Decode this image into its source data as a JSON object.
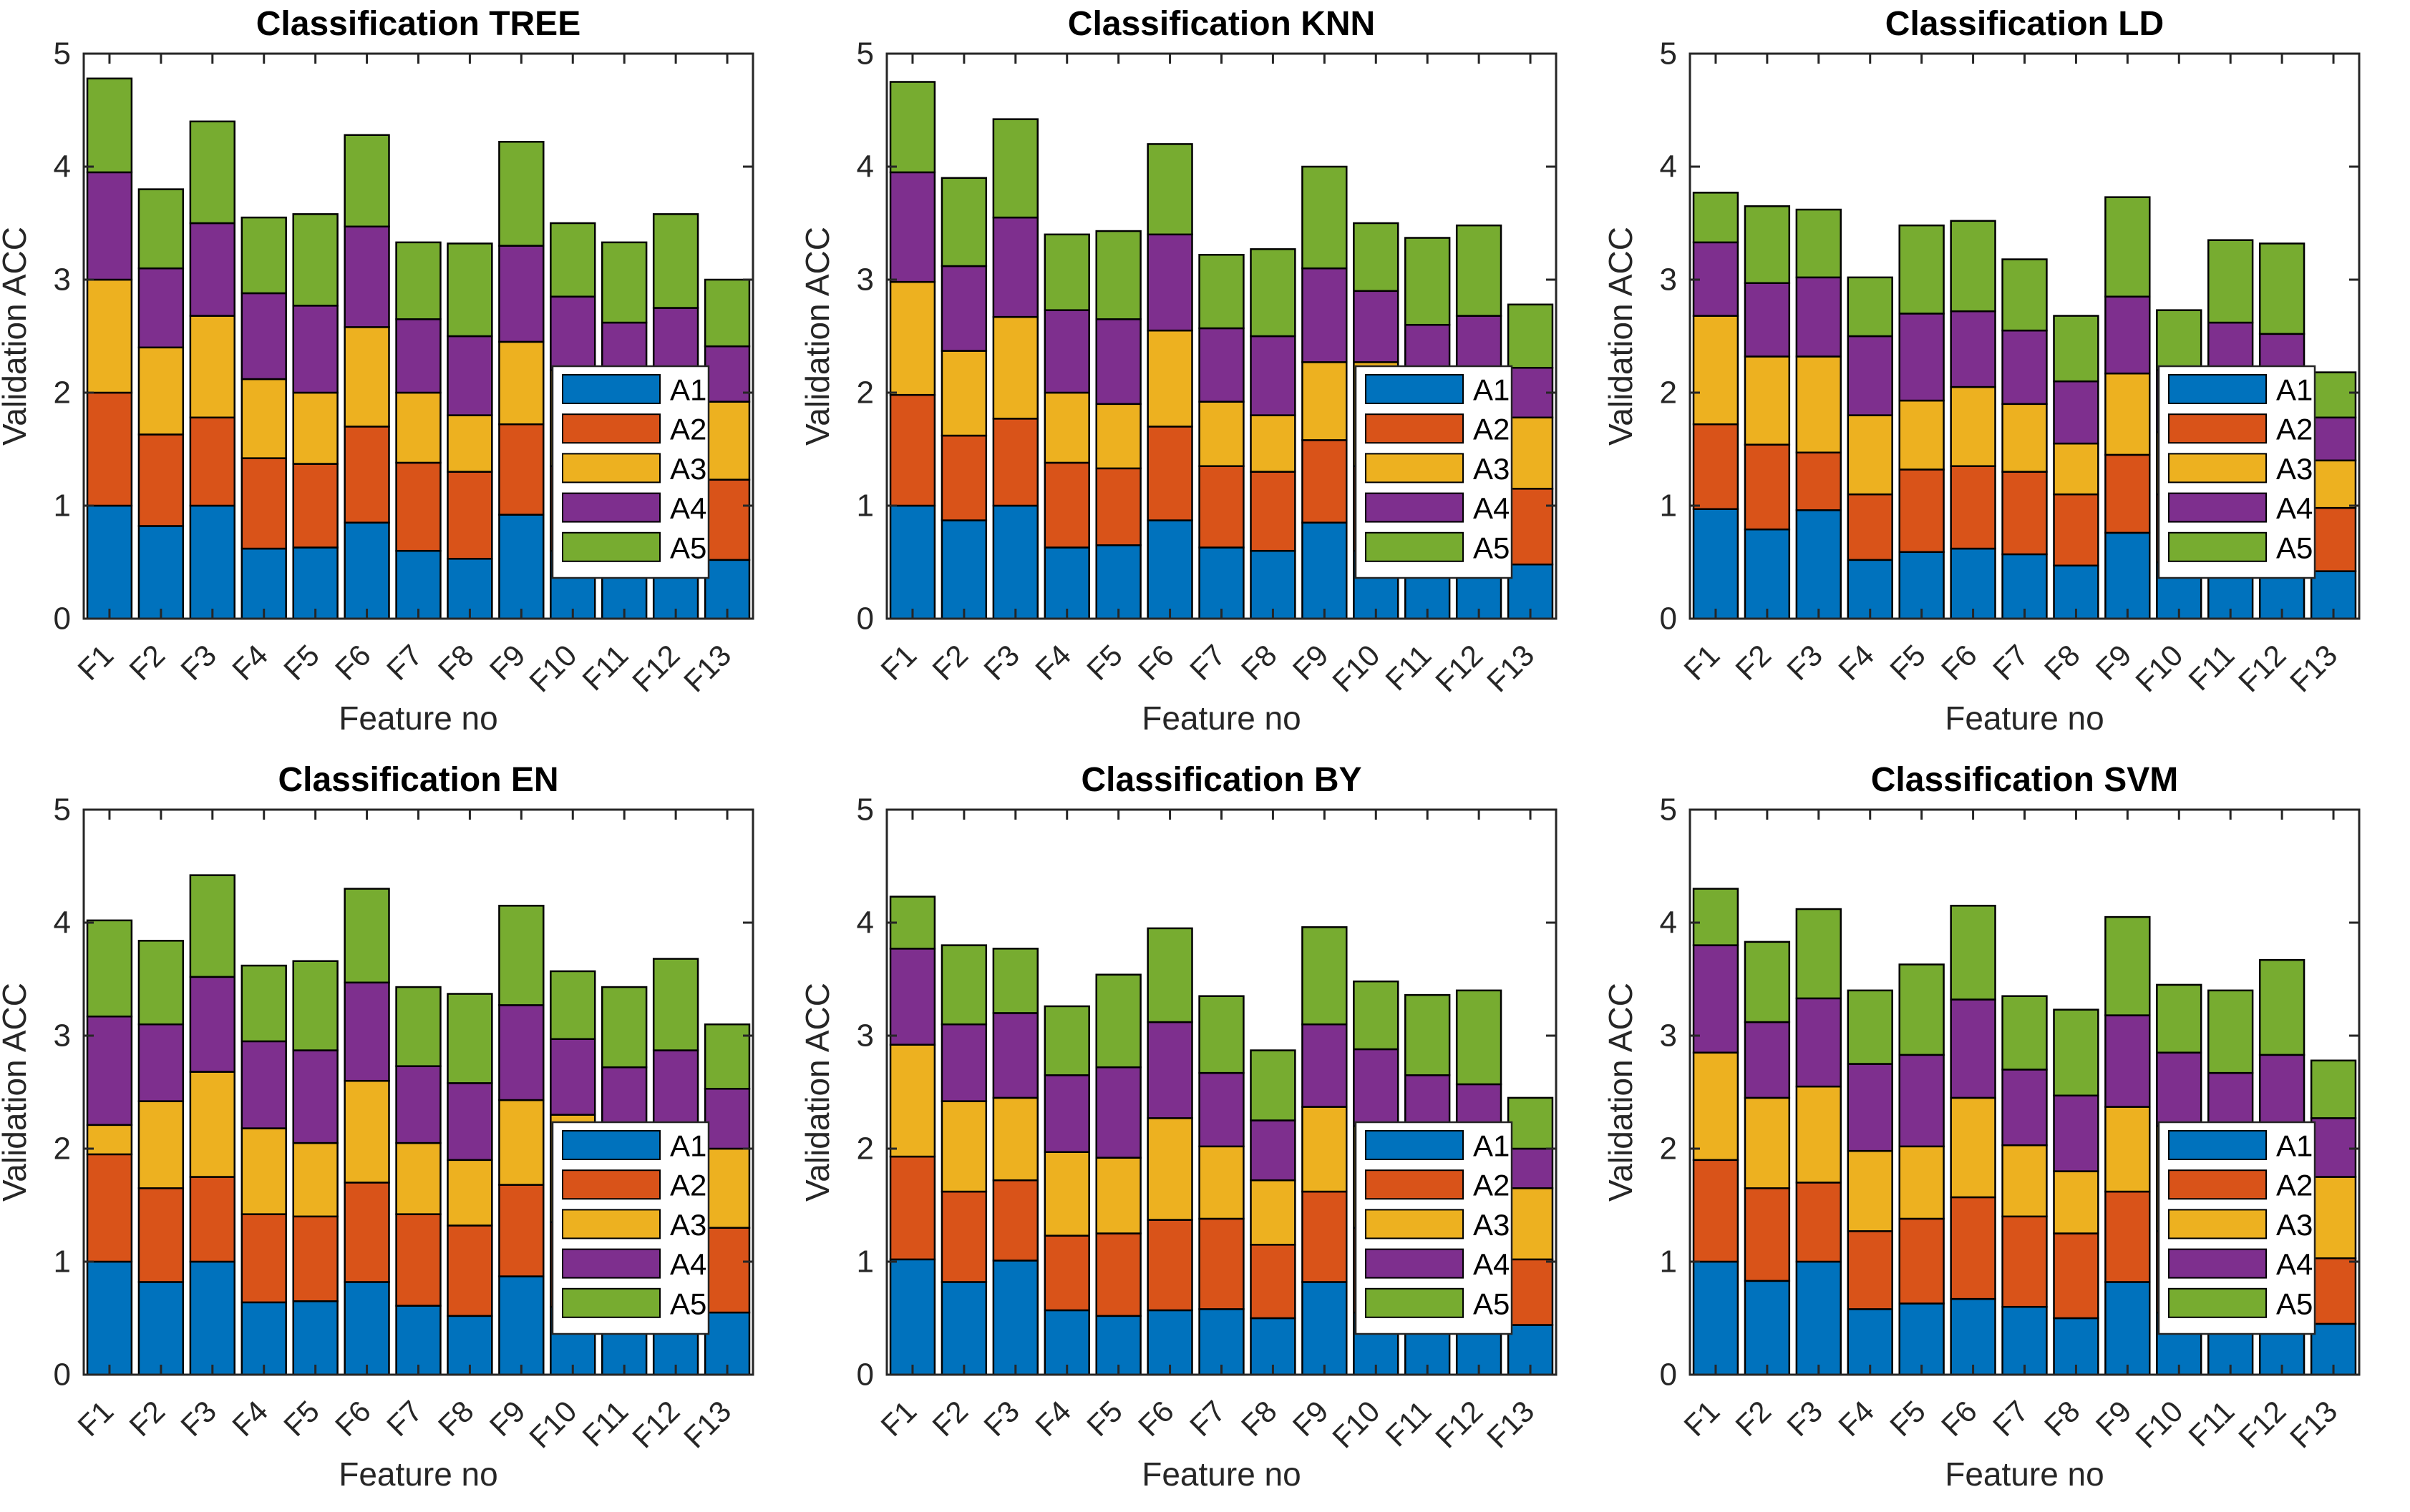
{
  "figure": {
    "background": "#ffffff",
    "rows": 2,
    "cols": 3,
    "axis_color": "#262626",
    "title_color": "#000000",
    "bar_edge_color": "#000000"
  },
  "palette": {
    "A1": "#0072BD",
    "A2": "#D95319",
    "A3": "#EDB120",
    "A4": "#7E2F8E",
    "A5": "#77AC30"
  },
  "chart_data": [
    {
      "type": "bar",
      "stacked": true,
      "title": "Classification TREE",
      "xlabel": "Feature no",
      "ylabel": "Validation ACC",
      "categories": [
        "F1",
        "F2",
        "F3",
        "F4",
        "F5",
        "F6",
        "F7",
        "F8",
        "F9",
        "F10",
        "F11",
        "F12",
        "F13"
      ],
      "ylim": [
        0,
        5
      ],
      "yticks": [
        0,
        1,
        2,
        3,
        4,
        5
      ],
      "grid": false,
      "legend_position": "inside-lower-right",
      "series": [
        {
          "name": "A1",
          "color": "#0072BD",
          "values": [
            1.0,
            0.82,
            1.0,
            0.62,
            0.63,
            0.85,
            0.6,
            0.53,
            0.92,
            0.6,
            0.55,
            0.6,
            0.52
          ]
        },
        {
          "name": "A2",
          "color": "#D95319",
          "values": [
            1.0,
            0.81,
            0.78,
            0.8,
            0.74,
            0.85,
            0.78,
            0.77,
            0.8,
            0.75,
            0.75,
            0.75,
            0.71
          ]
        },
        {
          "name": "A3",
          "color": "#EDB120",
          "values": [
            1.0,
            0.77,
            0.9,
            0.7,
            0.63,
            0.88,
            0.62,
            0.5,
            0.73,
            0.85,
            0.75,
            0.75,
            0.69
          ]
        },
        {
          "name": "A4",
          "color": "#7E2F8E",
          "values": [
            0.95,
            0.7,
            0.82,
            0.76,
            0.77,
            0.89,
            0.65,
            0.7,
            0.85,
            0.65,
            0.57,
            0.65,
            0.49
          ]
        },
        {
          "name": "A5",
          "color": "#77AC30",
          "values": [
            0.83,
            0.7,
            0.9,
            0.67,
            0.81,
            0.81,
            0.68,
            0.82,
            0.92,
            0.65,
            0.71,
            0.83,
            0.59
          ]
        }
      ]
    },
    {
      "type": "bar",
      "stacked": true,
      "title": "Classification KNN",
      "xlabel": "Feature no",
      "ylabel": "Validation ACC",
      "categories": [
        "F1",
        "F2",
        "F3",
        "F4",
        "F5",
        "F6",
        "F7",
        "F8",
        "F9",
        "F10",
        "F11",
        "F12",
        "F13"
      ],
      "ylim": [
        0,
        5
      ],
      "yticks": [
        0,
        1,
        2,
        3,
        4,
        5
      ],
      "grid": false,
      "legend_position": "inside-lower-right",
      "series": [
        {
          "name": "A1",
          "color": "#0072BD",
          "values": [
            1.0,
            0.87,
            1.0,
            0.63,
            0.65,
            0.87,
            0.63,
            0.6,
            0.85,
            0.6,
            0.55,
            0.6,
            0.48
          ]
        },
        {
          "name": "A2",
          "color": "#D95319",
          "values": [
            0.98,
            0.75,
            0.77,
            0.75,
            0.68,
            0.83,
            0.72,
            0.7,
            0.73,
            0.75,
            0.75,
            0.72,
            0.67
          ]
        },
        {
          "name": "A3",
          "color": "#EDB120",
          "values": [
            1.0,
            0.75,
            0.9,
            0.62,
            0.57,
            0.85,
            0.57,
            0.5,
            0.69,
            0.92,
            0.75,
            0.73,
            0.63
          ]
        },
        {
          "name": "A4",
          "color": "#7E2F8E",
          "values": [
            0.97,
            0.75,
            0.88,
            0.73,
            0.75,
            0.85,
            0.65,
            0.7,
            0.83,
            0.63,
            0.55,
            0.63,
            0.44
          ]
        },
        {
          "name": "A5",
          "color": "#77AC30",
          "values": [
            0.8,
            0.78,
            0.87,
            0.67,
            0.78,
            0.8,
            0.65,
            0.77,
            0.9,
            0.6,
            0.77,
            0.8,
            0.56
          ]
        }
      ]
    },
    {
      "type": "bar",
      "stacked": true,
      "title": "Classification LD",
      "xlabel": "Feature no",
      "ylabel": "Validation ACC",
      "categories": [
        "F1",
        "F2",
        "F3",
        "F4",
        "F5",
        "F6",
        "F7",
        "F8",
        "F9",
        "F10",
        "F11",
        "F12",
        "F13"
      ],
      "ylim": [
        0,
        5
      ],
      "yticks": [
        0,
        1,
        2,
        3,
        4,
        5
      ],
      "grid": false,
      "legend_position": "inside-lower-right",
      "series": [
        {
          "name": "A1",
          "color": "#0072BD",
          "values": [
            0.97,
            0.79,
            0.96,
            0.52,
            0.59,
            0.62,
            0.57,
            0.47,
            0.76,
            0.5,
            0.55,
            0.55,
            0.42
          ]
        },
        {
          "name": "A2",
          "color": "#D95319",
          "values": [
            0.75,
            0.75,
            0.51,
            0.58,
            0.73,
            0.73,
            0.73,
            0.63,
            0.69,
            0.6,
            0.7,
            0.68,
            0.56
          ]
        },
        {
          "name": "A3",
          "color": "#EDB120",
          "values": [
            0.96,
            0.78,
            0.85,
            0.7,
            0.61,
            0.7,
            0.6,
            0.45,
            0.72,
            0.55,
            0.75,
            0.72,
            0.42
          ]
        },
        {
          "name": "A4",
          "color": "#7E2F8E",
          "values": [
            0.65,
            0.65,
            0.7,
            0.7,
            0.77,
            0.67,
            0.65,
            0.55,
            0.68,
            0.55,
            0.62,
            0.57,
            0.38
          ]
        },
        {
          "name": "A5",
          "color": "#77AC30",
          "values": [
            0.44,
            0.68,
            0.6,
            0.52,
            0.78,
            0.8,
            0.63,
            0.58,
            0.88,
            0.53,
            0.73,
            0.8,
            0.4
          ]
        }
      ]
    },
    {
      "type": "bar",
      "stacked": true,
      "title": "Classification EN",
      "xlabel": "Feature no",
      "ylabel": "Validation ACC",
      "categories": [
        "F1",
        "F2",
        "F3",
        "F4",
        "F5",
        "F6",
        "F7",
        "F8",
        "F9",
        "F10",
        "F11",
        "F12",
        "F13"
      ],
      "ylim": [
        0,
        5
      ],
      "yticks": [
        0,
        1,
        2,
        3,
        4,
        5
      ],
      "grid": false,
      "legend_position": "inside-lower-right",
      "series": [
        {
          "name": "A1",
          "color": "#0072BD",
          "values": [
            1.0,
            0.82,
            1.0,
            0.64,
            0.65,
            0.82,
            0.61,
            0.52,
            0.87,
            0.6,
            0.55,
            0.6,
            0.55
          ]
        },
        {
          "name": "A2",
          "color": "#D95319",
          "values": [
            0.95,
            0.83,
            0.75,
            0.78,
            0.75,
            0.88,
            0.81,
            0.8,
            0.81,
            0.75,
            0.72,
            0.73,
            0.75
          ]
        },
        {
          "name": "A3",
          "color": "#EDB120",
          "values": [
            0.26,
            0.77,
            0.93,
            0.76,
            0.65,
            0.9,
            0.63,
            0.58,
            0.75,
            0.95,
            0.75,
            0.75,
            0.7
          ]
        },
        {
          "name": "A4",
          "color": "#7E2F8E",
          "values": [
            0.96,
            0.68,
            0.84,
            0.77,
            0.82,
            0.87,
            0.68,
            0.68,
            0.84,
            0.67,
            0.7,
            0.79,
            0.53
          ]
        },
        {
          "name": "A5",
          "color": "#77AC30",
          "values": [
            0.85,
            0.74,
            0.9,
            0.67,
            0.79,
            0.83,
            0.7,
            0.79,
            0.88,
            0.6,
            0.71,
            0.81,
            0.57
          ]
        }
      ]
    },
    {
      "type": "bar",
      "stacked": true,
      "title": "Classification BY",
      "xlabel": "Feature no",
      "ylabel": "Validation ACC",
      "categories": [
        "F1",
        "F2",
        "F3",
        "F4",
        "F5",
        "F6",
        "F7",
        "F8",
        "F9",
        "F10",
        "F11",
        "F12",
        "F13"
      ],
      "ylim": [
        0,
        5
      ],
      "yticks": [
        0,
        1,
        2,
        3,
        4,
        5
      ],
      "grid": false,
      "legend_position": "inside-lower-right",
      "series": [
        {
          "name": "A1",
          "color": "#0072BD",
          "values": [
            1.02,
            0.82,
            1.01,
            0.57,
            0.52,
            0.57,
            0.58,
            0.5,
            0.82,
            0.55,
            0.55,
            0.55,
            0.44
          ]
        },
        {
          "name": "A2",
          "color": "#D95319",
          "values": [
            0.91,
            0.8,
            0.71,
            0.66,
            0.73,
            0.8,
            0.8,
            0.65,
            0.8,
            0.75,
            0.7,
            0.7,
            0.58
          ]
        },
        {
          "name": "A3",
          "color": "#EDB120",
          "values": [
            0.99,
            0.8,
            0.73,
            0.74,
            0.67,
            0.9,
            0.64,
            0.57,
            0.75,
            0.9,
            0.78,
            0.75,
            0.63
          ]
        },
        {
          "name": "A4",
          "color": "#7E2F8E",
          "values": [
            0.85,
            0.68,
            0.75,
            0.68,
            0.8,
            0.85,
            0.65,
            0.53,
            0.73,
            0.68,
            0.62,
            0.57,
            0.35
          ]
        },
        {
          "name": "A5",
          "color": "#77AC30",
          "values": [
            0.46,
            0.7,
            0.57,
            0.61,
            0.82,
            0.83,
            0.68,
            0.62,
            0.86,
            0.6,
            0.71,
            0.83,
            0.45
          ]
        }
      ]
    },
    {
      "type": "bar",
      "stacked": true,
      "title": "Classification SVM",
      "xlabel": "Feature no",
      "ylabel": "Validation ACC",
      "categories": [
        "F1",
        "F2",
        "F3",
        "F4",
        "F5",
        "F6",
        "F7",
        "F8",
        "F9",
        "F10",
        "F11",
        "F12",
        "F13"
      ],
      "ylim": [
        0,
        5
      ],
      "yticks": [
        0,
        1,
        2,
        3,
        4,
        5
      ],
      "grid": false,
      "legend_position": "inside-lower-right",
      "series": [
        {
          "name": "A1",
          "color": "#0072BD",
          "values": [
            1.0,
            0.83,
            1.0,
            0.58,
            0.63,
            0.67,
            0.6,
            0.5,
            0.82,
            0.55,
            0.55,
            0.58,
            0.45
          ]
        },
        {
          "name": "A2",
          "color": "#D95319",
          "values": [
            0.9,
            0.82,
            0.7,
            0.69,
            0.75,
            0.9,
            0.8,
            0.75,
            0.8,
            0.72,
            0.7,
            0.72,
            0.58
          ]
        },
        {
          "name": "A3",
          "color": "#EDB120",
          "values": [
            0.95,
            0.8,
            0.85,
            0.71,
            0.64,
            0.88,
            0.63,
            0.55,
            0.75,
            0.93,
            0.75,
            0.73,
            0.72
          ]
        },
        {
          "name": "A4",
          "color": "#7E2F8E",
          "values": [
            0.95,
            0.67,
            0.78,
            0.77,
            0.81,
            0.87,
            0.67,
            0.67,
            0.81,
            0.65,
            0.67,
            0.8,
            0.52
          ]
        },
        {
          "name": "A5",
          "color": "#77AC30",
          "values": [
            0.5,
            0.71,
            0.79,
            0.65,
            0.8,
            0.83,
            0.65,
            0.76,
            0.87,
            0.6,
            0.73,
            0.84,
            0.51
          ]
        }
      ]
    }
  ]
}
